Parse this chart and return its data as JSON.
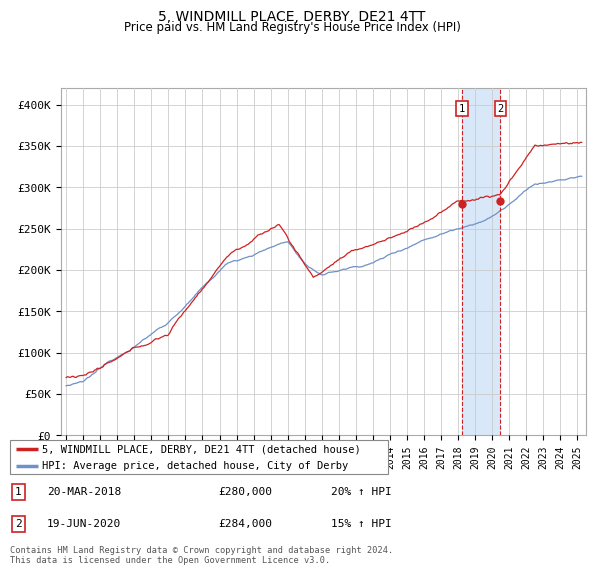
{
  "title": "5, WINDMILL PLACE, DERBY, DE21 4TT",
  "subtitle": "Price paid vs. HM Land Registry's House Price Index (HPI)",
  "ylabel_ticks": [
    "£0",
    "£50K",
    "£100K",
    "£150K",
    "£200K",
    "£250K",
    "£300K",
    "£350K",
    "£400K"
  ],
  "ytick_values": [
    0,
    50000,
    100000,
    150000,
    200000,
    250000,
    300000,
    350000,
    400000
  ],
  "ylim": [
    0,
    420000
  ],
  "xlim_start": 1994.7,
  "xlim_end": 2025.5,
  "hpi_color": "#7090c8",
  "price_color": "#cc2222",
  "shade_color": "#d8e8f8",
  "transactions": [
    {
      "label": "1",
      "date": "20-MAR-2018",
      "price": 280000,
      "hpi_pct": "20% ↑ HPI",
      "x": 2018.22
    },
    {
      "label": "2",
      "date": "19-JUN-2020",
      "price": 284000,
      "hpi_pct": "15% ↑ HPI",
      "x": 2020.47
    }
  ],
  "footnote": "Contains HM Land Registry data © Crown copyright and database right 2024.\nThis data is licensed under the Open Government Licence v3.0.",
  "legend_line1": "5, WINDMILL PLACE, DERBY, DE21 4TT (detached house)",
  "legend_line2": "HPI: Average price, detached house, City of Derby"
}
